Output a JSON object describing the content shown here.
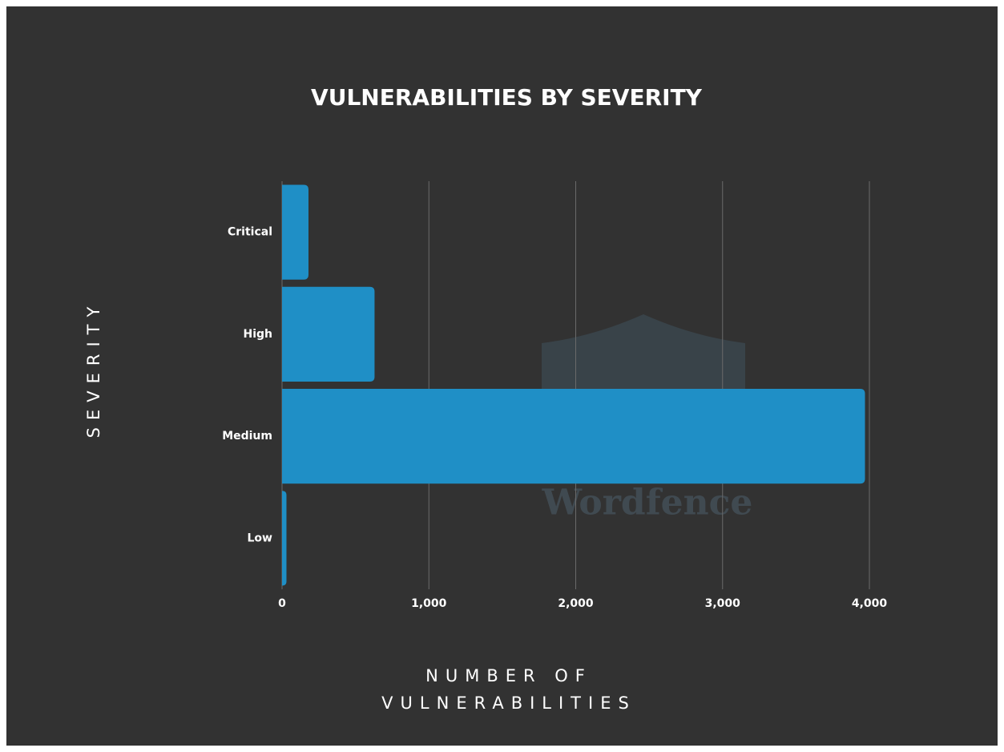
{
  "chart_data": {
    "type": "hbar",
    "title": "VULNERABILITIES BY SEVERITY",
    "x_label": "NUMBER OF VULNERABILITIES",
    "y_label": "SEVERITY",
    "watermark": "Wordfence",
    "categories": [
      "Critical",
      "High",
      "Medium",
      "Low"
    ],
    "values": [
      180,
      630,
      3970,
      30
    ],
    "color": "#1f8fc6",
    "xlim": [
      0,
      4000
    ],
    "xticks": [
      0,
      {
        "value": 1000,
        "label": "1,000"
      },
      {
        "value": 2000,
        "label": "2,000"
      },
      {
        "value": 3000,
        "label": "3,000"
      },
      {
        "value": 4000,
        "label": "4,000"
      }
    ],
    "grid": true
  }
}
